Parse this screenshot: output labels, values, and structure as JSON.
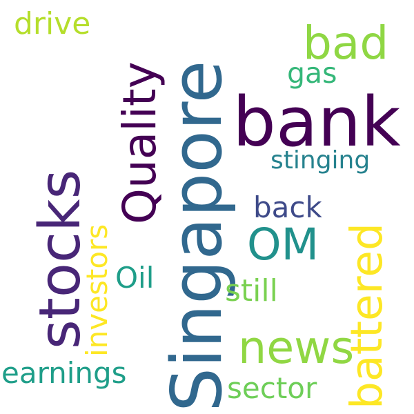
{
  "words": {
    "singapore": {
      "text": "Singapore",
      "color": "#31688e"
    },
    "bank": {
      "text": "bank",
      "color": "#440154"
    },
    "stocks": {
      "text": "stocks",
      "color": "#482677"
    },
    "quality": {
      "text": "Quality",
      "color": "#440154"
    },
    "battered": {
      "text": "battered",
      "color": "#fde725"
    },
    "news": {
      "text": "news",
      "color": "#90d743"
    },
    "om": {
      "text": "OM",
      "color": "#21918c"
    },
    "bad": {
      "text": "bad",
      "color": "#8fd744"
    },
    "drive": {
      "text": "drive",
      "color": "#b5de2b"
    },
    "gas": {
      "text": "gas",
      "color": "#35b779"
    },
    "stinging": {
      "text": "stinging",
      "color": "#26828e"
    },
    "back": {
      "text": "back",
      "color": "#3e4a89"
    },
    "investors": {
      "text": "investors",
      "color": "#fde725"
    },
    "oil": {
      "text": "Oil",
      "color": "#1f9e89"
    },
    "still": {
      "text": "still",
      "color": "#7ad151"
    },
    "earnings": {
      "text": "earnings",
      "color": "#1f9e89"
    },
    "sector": {
      "text": "sector",
      "color": "#6ece58"
    }
  }
}
